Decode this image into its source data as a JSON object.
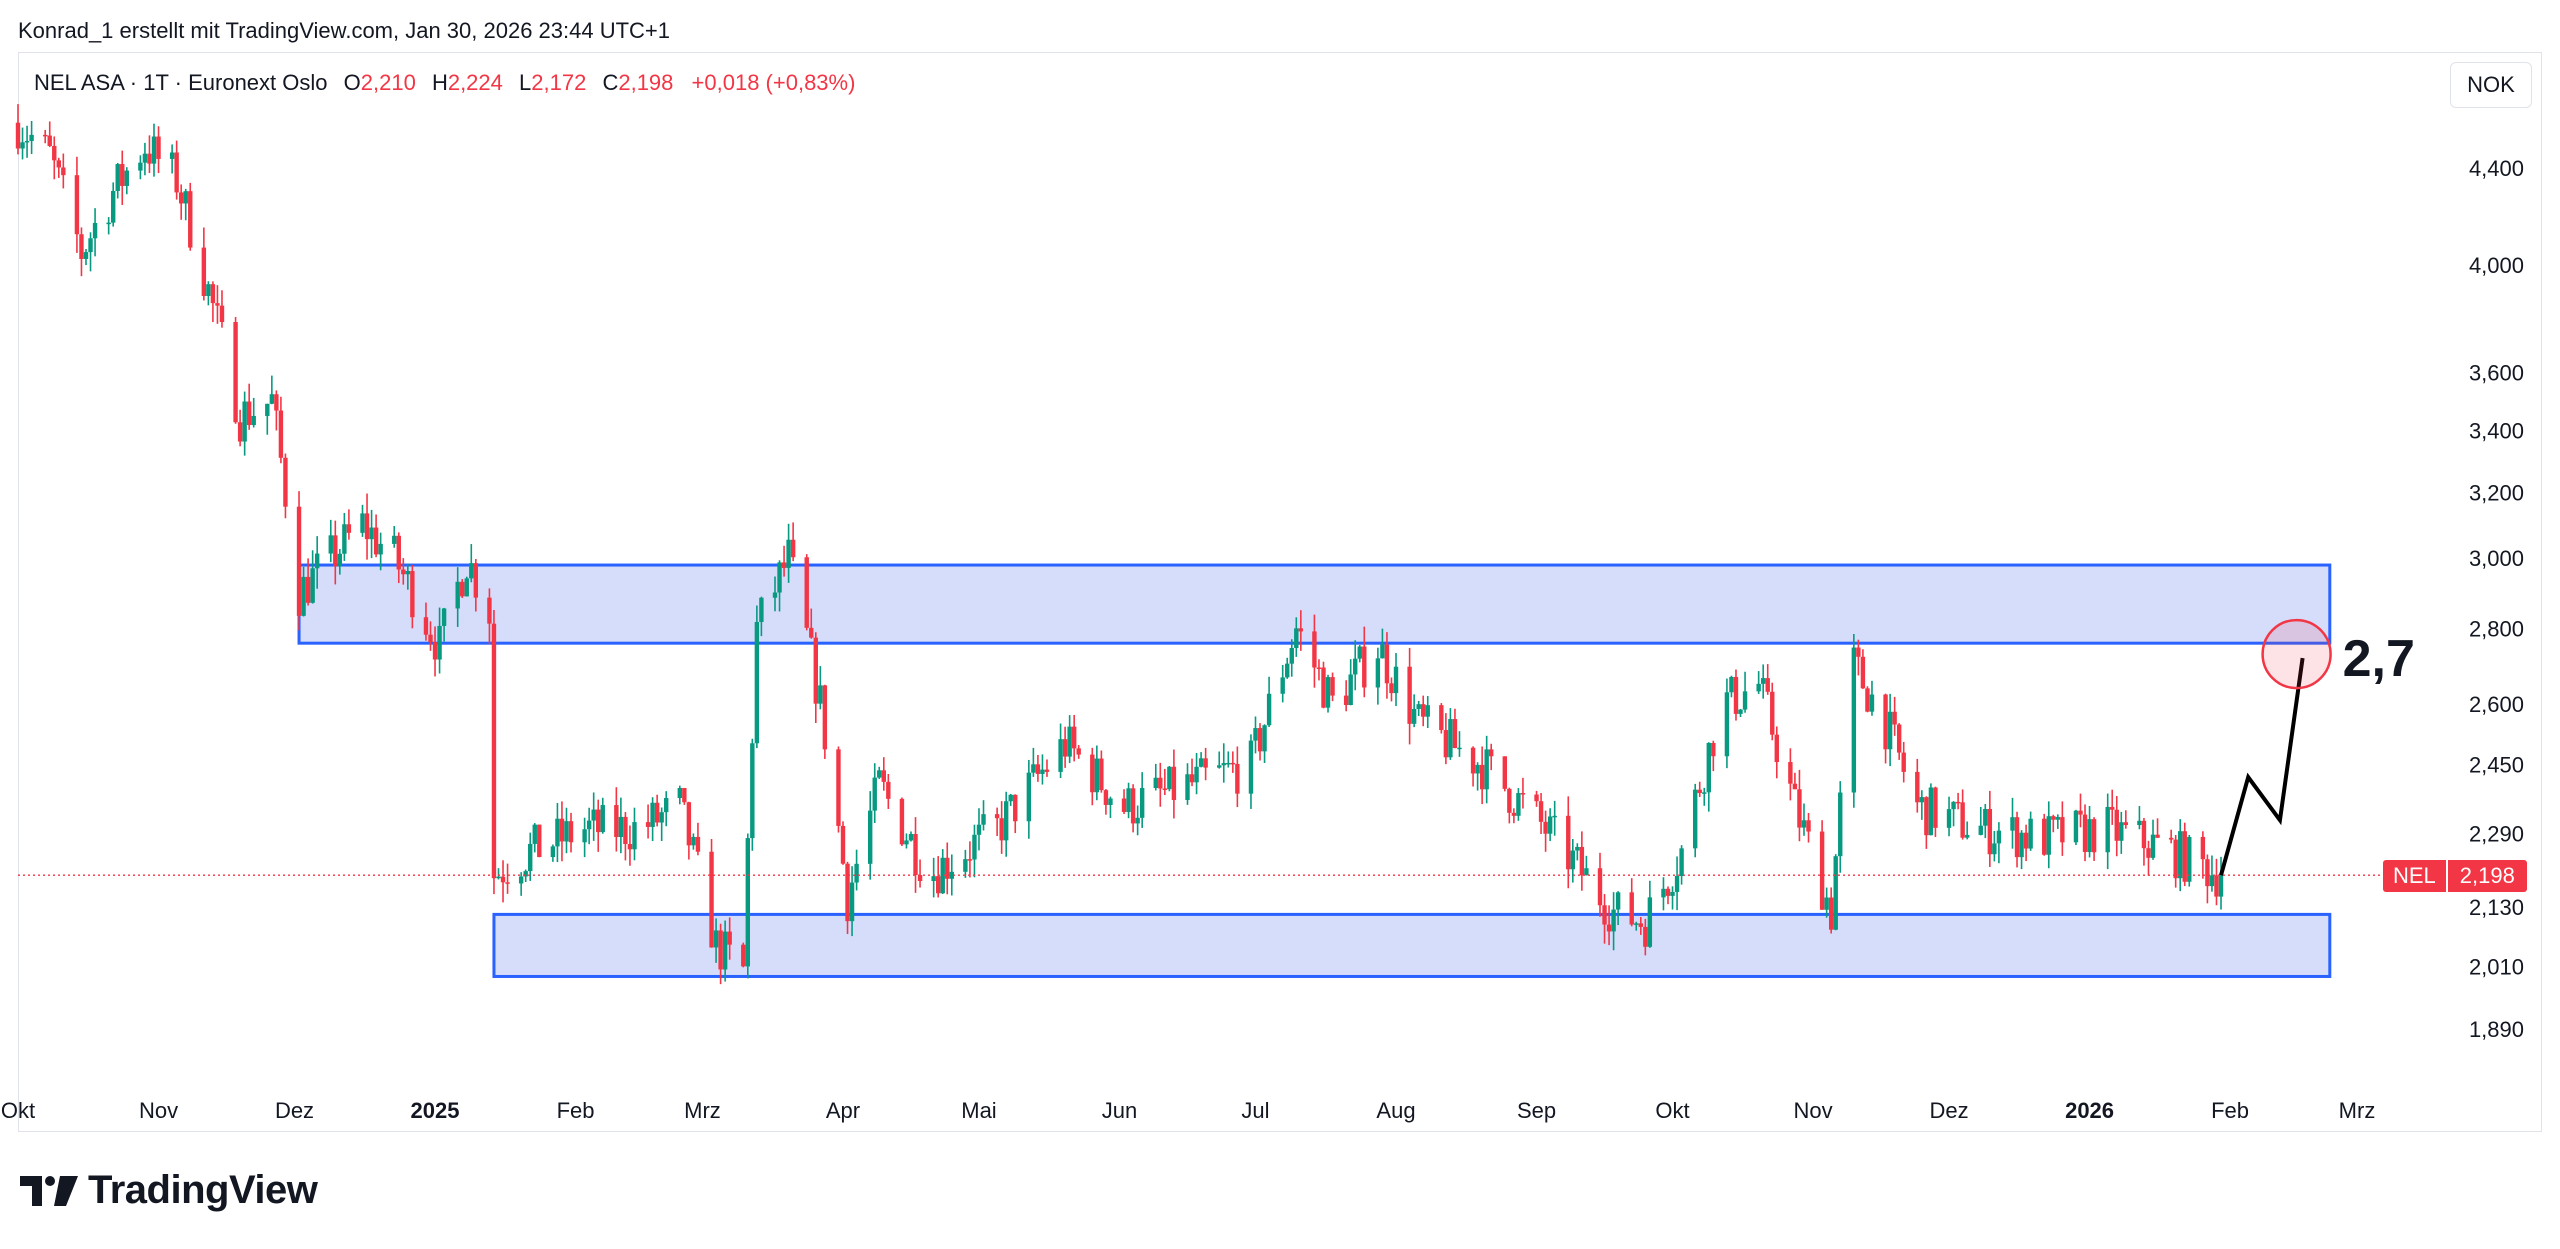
{
  "header": {
    "attribution": "Konrad_1 erstellt mit TradingView.com, Jan 30, 2026 23:44 UTC+1"
  },
  "legend": {
    "symbol": "NEL ASA",
    "interval": "1T",
    "exchange": "Euronext Oslo",
    "open_label": "O",
    "open": "2,210",
    "high_label": "H",
    "high": "2,224",
    "low_label": "L",
    "low": "2,172",
    "close_label": "C",
    "close": "2,198",
    "change": "+0,018 (+0,83%)"
  },
  "currency_button": "NOK",
  "price_tag": {
    "ticker": "NEL",
    "price": "2,198"
  },
  "annotation": {
    "target_text": "2,7"
  },
  "footer": {
    "brand": "TradingView"
  },
  "colors": {
    "up": "#089981",
    "down": "#f23645",
    "zone_fill": "#d6ddfb",
    "zone_border": "#2962ff",
    "target_circle": "#f23645",
    "price_line": "#f23645"
  },
  "chart_data": {
    "type": "candlestick",
    "scale": "log",
    "ylim": [
      1.8,
      4.9
    ],
    "y_ticks": [
      "4,400",
      "4,000",
      "3,600",
      "3,400",
      "3,200",
      "3,000",
      "2,800",
      "2,600",
      "2,450",
      "2,290",
      "2,130",
      "2,010",
      "1,890"
    ],
    "y_tick_values": [
      4.4,
      4.0,
      3.6,
      3.4,
      3.2,
      3.0,
      2.8,
      2.6,
      2.45,
      2.29,
      2.13,
      2.01,
      1.89
    ],
    "x_ticks": [
      {
        "label": "Okt",
        "date": "2024-10-01",
        "bold": false
      },
      {
        "label": "Nov",
        "date": "2024-11-01",
        "bold": false
      },
      {
        "label": "Dez",
        "date": "2024-12-01",
        "bold": false
      },
      {
        "label": "2025",
        "date": "2025-01-01",
        "bold": true
      },
      {
        "label": "Feb",
        "date": "2025-02-01",
        "bold": false
      },
      {
        "label": "Mrz",
        "date": "2025-03-01",
        "bold": false
      },
      {
        "label": "Apr",
        "date": "2025-04-01",
        "bold": false
      },
      {
        "label": "Mai",
        "date": "2025-05-01",
        "bold": false
      },
      {
        "label": "Jun",
        "date": "2025-06-01",
        "bold": false
      },
      {
        "label": "Jul",
        "date": "2025-07-01",
        "bold": false
      },
      {
        "label": "Aug",
        "date": "2025-08-01",
        "bold": false
      },
      {
        "label": "Sep",
        "date": "2025-09-01",
        "bold": false
      },
      {
        "label": "Okt",
        "date": "2025-10-01",
        "bold": false
      },
      {
        "label": "Nov",
        "date": "2025-11-01",
        "bold": false
      },
      {
        "label": "Dez",
        "date": "2025-12-01",
        "bold": false
      },
      {
        "label": "2026",
        "date": "2026-01-01",
        "bold": true
      },
      {
        "label": "Feb",
        "date": "2026-02-01",
        "bold": false
      },
      {
        "label": "Mrz",
        "date": "2026-03-01",
        "bold": false
      }
    ],
    "price_anchors": [
      [
        "2024-10-01",
        4.6
      ],
      [
        "2024-10-08",
        4.45
      ],
      [
        "2024-10-15",
        4.05
      ],
      [
        "2024-10-22",
        4.3
      ],
      [
        "2024-10-29",
        4.5
      ],
      [
        "2024-11-05",
        4.35
      ],
      [
        "2024-11-12",
        3.9
      ],
      [
        "2024-11-19",
        3.45
      ],
      [
        "2024-11-26",
        3.5
      ],
      [
        "2024-12-02",
        2.9
      ],
      [
        "2024-12-09",
        3.0
      ],
      [
        "2024-12-16",
        3.1
      ],
      [
        "2024-12-23",
        3.0
      ],
      [
        "2025-01-02",
        2.75
      ],
      [
        "2025-01-08",
        3.0
      ],
      [
        "2025-01-13",
        2.85
      ],
      [
        "2025-01-14",
        2.2
      ],
      [
        "2025-01-22",
        2.25
      ],
      [
        "2025-02-03",
        2.3
      ],
      [
        "2025-02-15",
        2.3
      ],
      [
        "2025-02-24",
        2.35
      ],
      [
        "2025-03-04",
        2.05
      ],
      [
        "2025-03-10",
        2.0
      ],
      [
        "2025-03-13",
        2.8
      ],
      [
        "2025-03-20",
        3.0
      ],
      [
        "2025-03-27",
        2.6
      ],
      [
        "2025-04-02",
        2.15
      ],
      [
        "2025-04-09",
        2.4
      ],
      [
        "2025-04-20",
        2.2
      ],
      [
        "2025-05-05",
        2.3
      ],
      [
        "2025-05-20",
        2.5
      ],
      [
        "2025-06-02",
        2.35
      ],
      [
        "2025-06-16",
        2.4
      ],
      [
        "2025-06-30",
        2.45
      ],
      [
        "2025-07-10",
        2.8
      ],
      [
        "2025-07-18",
        2.6
      ],
      [
        "2025-07-28",
        2.75
      ],
      [
        "2025-08-06",
        2.55
      ],
      [
        "2025-08-20",
        2.45
      ],
      [
        "2025-09-03",
        2.3
      ],
      [
        "2025-09-18",
        2.12
      ],
      [
        "2025-09-25",
        2.1
      ],
      [
        "2025-10-03",
        2.25
      ],
      [
        "2025-10-12",
        2.6
      ],
      [
        "2025-10-20",
        2.65
      ],
      [
        "2025-10-28",
        2.35
      ],
      [
        "2025-11-05",
        2.12
      ],
      [
        "2025-11-10",
        2.7
      ],
      [
        "2025-11-17",
        2.55
      ],
      [
        "2025-11-24",
        2.35
      ],
      [
        "2025-12-08",
        2.3
      ],
      [
        "2025-12-22",
        2.28
      ],
      [
        "2026-01-05",
        2.3
      ],
      [
        "2026-01-19",
        2.25
      ],
      [
        "2026-01-30",
        2.198
      ]
    ],
    "zones": [
      {
        "from": "2024-12-02",
        "to": "2026-02-23",
        "low": 2.76,
        "high": 2.98
      },
      {
        "from": "2025-01-14",
        "to": "2026-02-23",
        "low": 1.99,
        "high": 2.115
      }
    ],
    "last_price": 2.198,
    "projection": [
      [
        "2026-01-30",
        2.198
      ],
      [
        "2026-02-05",
        2.42
      ],
      [
        "2026-02-12",
        2.32
      ],
      [
        "2026-02-17",
        2.72
      ]
    ],
    "target_circle_center": [
      "2026-02-17",
      2.72
    ]
  }
}
